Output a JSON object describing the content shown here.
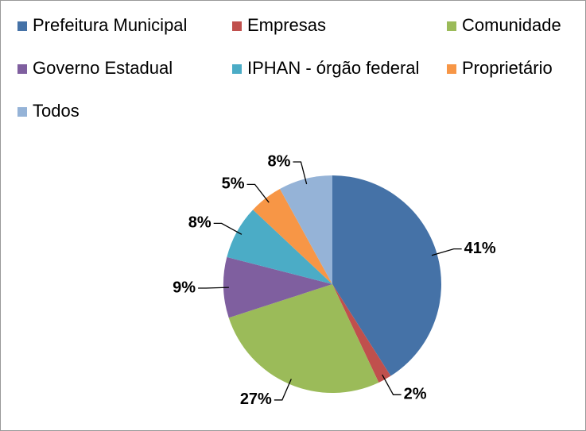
{
  "chart_data": {
    "type": "pie",
    "categories": [
      "Prefeitura Municipal",
      "Empresas",
      "Comunidade",
      "Governo Estadual",
      "IPHAN - órgão federal",
      "Proprietário",
      "Todos"
    ],
    "values": [
      41,
      2,
      27,
      9,
      8,
      5,
      8
    ],
    "value_labels": [
      "41%",
      "2%",
      "27%",
      "9%",
      "8%",
      "5%",
      "8%"
    ],
    "colors": [
      "#4572a7",
      "#c0504d",
      "#9bbb59",
      "#7f5f9f",
      "#4bacc6",
      "#f79646",
      "#95b3d7"
    ],
    "legend": "top"
  }
}
